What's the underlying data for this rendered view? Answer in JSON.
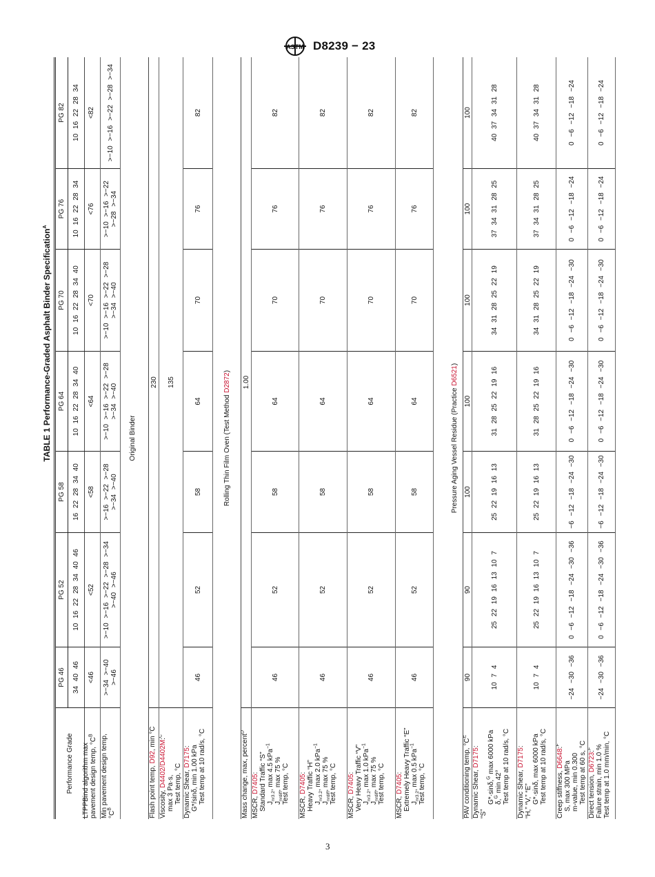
{
  "header": {
    "logo_text": "ASTM",
    "doc_id": "D8239 − 23"
  },
  "page_number": "3",
  "colors": {
    "reference": "#c8102e"
  },
  "table": {
    "title": "TABLE 1 Performance-Graded Asphalt Binder Specification",
    "title_note": "A",
    "grade_label": "Performance Grade",
    "grades": [
      "PG 46",
      "PG 52",
      "PG 58",
      "PG 64",
      "PG 70",
      "PG 76",
      "PG 82"
    ],
    "temps": [
      "34  40  46",
      "10  16  22  28  34  40  46",
      "16  22  28  34  40",
      "10  16  22  28  34  40",
      "10  16  22  28  34  40",
      "10  16  22  28  34",
      "10  16  22  28  34"
    ],
    "ltpp": {
      "line1": "LTPPBind algorithm max",
      "line2": "pavement design temp, °C",
      "note": "B",
      "values": [
        "<46",
        "<52",
        "<58",
        "<64",
        "<70",
        "<76",
        "<82"
      ]
    },
    "min_temp": {
      "line1": "Min pavement design temp,",
      "line2": "°C",
      "note": "B",
      "values": [
        ">−34 >−40\n>−46",
        ">−10 >−16 >−22 >−28 >−34\n>−40 >−46",
        ">−16 >−22 >−28\n>−34 >−40",
        ">−10 >−16 >−22 >−28\n>−34 >−40",
        ">−10 >−16 >−22 >−28\n>−34 >−40",
        ">−10 >−16 >−22\n>−28 >−34",
        ">−10 >−16 >−22 >−28 >−34"
      ]
    }
  },
  "original_binder": {
    "heading": "Original Binder",
    "flash": {
      "text": "Flash point temp, ",
      "ref": "D92",
      "text2": ", min °C",
      "value": "230"
    },
    "viscosity": {
      "text": "Viscosity, ",
      "ref": "D4402/D4402M",
      "text2": ":",
      "note": "C",
      "line2": "max 3 Pa·s,",
      "line3": "Test temp, °C",
      "value": "135"
    },
    "dynamic_shear": {
      "text": "Dynamic Shear, ",
      "ref": "D7175",
      "text2": ":",
      "line2": "G*/sinδ, min 1.00 kPa",
      "line3": "Test temp at 10 rad/s, °C",
      "values": [
        "46",
        "52",
        "58",
        "64",
        "70",
        "76",
        "82"
      ]
    }
  },
  "rtfo": {
    "heading": "Rolling Thin Film Oven (Test Method ",
    "heading_ref": "D2872",
    "heading_end": ")",
    "mass_change": {
      "text": "Mass change, max, percent",
      "note": "D",
      "value": "1.00"
    },
    "mscr_s": {
      "text": "MSCR, ",
      "ref": "D7405",
      "text2": ":",
      "traffic": "Standard Traffic “S”",
      "j": "J",
      "jsub": "nr3.2",
      "jtext": ", max 4.5 kPa",
      "jsup": "−1",
      "jd": "J",
      "jdsub": "nrdiff",
      "jdtext": ", max 75 %",
      "test": "Test temp, °C",
      "values": [
        "46",
        "52",
        "58",
        "64",
        "70",
        "76",
        "82"
      ]
    },
    "mscr_h": {
      "text": "MSCR, ",
      "ref": "D7405",
      "text2": ":",
      "traffic": "Heavy Traffic “H”",
      "j": "J",
      "jsub": "nr3.2",
      "jtext": ", max 2.0 kPa",
      "jsup": "−1",
      "jd": "J",
      "jdsub": "nrdiff",
      "jdtext": ", max 75 %",
      "test": "Test temp, °C",
      "values": [
        "46",
        "52",
        "58",
        "64",
        "70",
        "76",
        "82"
      ]
    },
    "mscr_v": {
      "text": "MSCR, ",
      "ref": "D7405",
      "text2": ":",
      "traffic": "Very Heavy Traffic “V”",
      "j": "J",
      "jsub": "nr3.2",
      "jtext": ", max 1.0 kPa",
      "jsup": "−1",
      "jd": "J",
      "jdsub": "nrdiff",
      "jdtext": ", max 75 %",
      "test": "Test temp, °C",
      "values": [
        "46",
        "52",
        "58",
        "64",
        "70",
        "76",
        "82"
      ]
    },
    "mscr_e": {
      "text": "MSCR, ",
      "ref": "D7405",
      "text2": ":",
      "traffic": "Extremely Heavy Traffic “E”",
      "j": "J",
      "jsub": "nr3.2",
      "jtext": ", max 0.5 kPa",
      "jsup": "−1",
      "test": "Test temp, °C",
      "values": [
        "46",
        "52",
        "58",
        "64",
        "70",
        "76",
        "82"
      ]
    }
  },
  "pav": {
    "heading": "Pressure Aging Vessel Residue (Practice ",
    "heading_ref": "D6521",
    "heading_end": ")",
    "temp": {
      "text": "PAV conditioning temp, °C",
      "note": "E",
      "values": [
        "90",
        "90",
        "100",
        "100",
        "100",
        "100",
        "100"
      ]
    },
    "ds_s": {
      "text": "Dynamic Shear, ",
      "ref": "D7175",
      "text2": ":",
      "line2": "“S”",
      "line3a": "G*·sinδ,",
      "line3note": "G",
      "line3b": " max 6000 kPa",
      "line4a": "δ,",
      "line4note": "G",
      "line4b": " min 42°",
      "line5": "Test temp at 10 rad/s, °C",
      "values": [
        "10  7  4",
        "25  22  19  16  13  10  7",
        "25  22  19  16  13",
        "31  28  25  22  19  16",
        "34  31  28  25  22  19",
        "37  34  31  28  25",
        "40  37  34  31  28"
      ]
    },
    "ds_hve": {
      "text": "Dynamic Shear, ",
      "ref": "D7175",
      "text2": ":",
      "line2": "“H,” “V,” “E”",
      "line3": "G*·sinδ, max 6000 kPa",
      "line4": "Test temp at 10 rad/s, °C",
      "values": [
        "10  7  4",
        "25  22  19  16  13  10  7",
        "25  22  19  16  13",
        "31  28  25  22  19  16",
        "34  31  28  25  22  19",
        "37  34  31  28  25",
        "40  37  34  31  28"
      ]
    },
    "creep": {
      "text": "Creep stiffness, ",
      "ref": "D6648",
      "text2": ":",
      "note": "F",
      "line2": "S, max 300 MPa",
      "line3": "m-value, min 0.300",
      "line4": "Test temp at 60 s, °C",
      "values": [
        "−24  −30  −36",
        "0  −6  −12  −18  −24  −30  −36",
        "−6 −12 −18 −24 −30",
        "0  −6  −12  −18  −24  −30",
        "0  −6  −12  −18  −24  −30",
        "0  −6  −12  −18  −24",
        "0  −6  −12  −18  −24"
      ]
    },
    "direct": {
      "text": "Direct tension, ",
      "ref": "D6723",
      "text2": ":",
      "note": "F",
      "line2": "Failure strain, min 1.0 %",
      "line3": "Test temp at 1.0 mm/min, °C",
      "values": [
        "−24  −30  −36",
        "0  −6  −12  −18  −24  −30  −36",
        "−6 −12 −18 −24 −30",
        "0  −6  −12  −18  −24  −30",
        "0  −6  −12  −18  −24  −30",
        "0  −6  −12  −18  −24",
        "0  −6  −12  −18  −24"
      ]
    }
  }
}
